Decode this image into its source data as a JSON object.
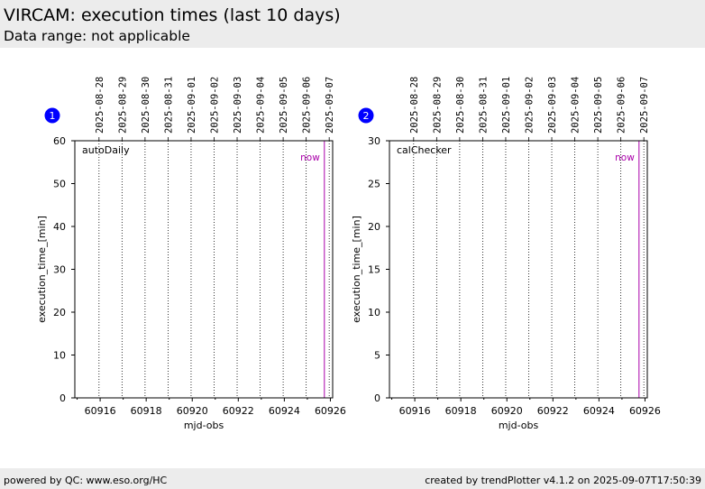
{
  "header": {
    "title": "VIRCAM: execution times (last 10 days)",
    "subtitle": "Data range: not applicable"
  },
  "footer": {
    "left": "powered by QC: www.eso.org/HC",
    "right": "created by trendPlotter v4.1.2 on 2025-09-07T17:50:39"
  },
  "colors": {
    "now_line": "#aa00aa",
    "marker": "#0000ff",
    "grid": "#000000"
  },
  "chart_data": [
    {
      "type": "scatter",
      "badge": "1",
      "panel_label": "autoDaily",
      "now_label": "now",
      "xlabel": "mjd-obs",
      "ylabel": "execution_time_[min]",
      "xlim": [
        60914.9,
        60926.1
      ],
      "ylim": [
        0,
        60
      ],
      "x_ticks": [
        60916,
        60918,
        60920,
        60922,
        60924,
        60926
      ],
      "y_ticks": [
        0,
        10,
        20,
        30,
        40,
        50,
        60
      ],
      "date_ticks": [
        {
          "mjd": 60915.95,
          "label": "2025-08-28"
        },
        {
          "mjd": 60916.95,
          "label": "2025-08-29"
        },
        {
          "mjd": 60917.95,
          "label": "2025-08-30"
        },
        {
          "mjd": 60918.95,
          "label": "2025-08-31"
        },
        {
          "mjd": 60919.95,
          "label": "2025-09-01"
        },
        {
          "mjd": 60920.95,
          "label": "2025-09-02"
        },
        {
          "mjd": 60921.95,
          "label": "2025-09-03"
        },
        {
          "mjd": 60922.95,
          "label": "2025-09-04"
        },
        {
          "mjd": 60923.95,
          "label": "2025-09-05"
        },
        {
          "mjd": 60924.95,
          "label": "2025-09-06"
        },
        {
          "mjd": 60925.95,
          "label": "2025-09-07"
        }
      ],
      "now_mjd": 60925.74,
      "series": []
    },
    {
      "type": "scatter",
      "badge": "2",
      "panel_label": "calChecker",
      "now_label": "now",
      "xlabel": "mjd-obs",
      "ylabel": "execution_time_[min]",
      "xlim": [
        60914.9,
        60926.1
      ],
      "ylim": [
        0,
        30
      ],
      "x_ticks": [
        60916,
        60918,
        60920,
        60922,
        60924,
        60926
      ],
      "y_ticks": [
        0,
        5,
        10,
        15,
        20,
        25,
        30
      ],
      "date_ticks": [
        {
          "mjd": 60915.95,
          "label": "2025-08-28"
        },
        {
          "mjd": 60916.95,
          "label": "2025-08-29"
        },
        {
          "mjd": 60917.95,
          "label": "2025-08-30"
        },
        {
          "mjd": 60918.95,
          "label": "2025-08-31"
        },
        {
          "mjd": 60919.95,
          "label": "2025-09-01"
        },
        {
          "mjd": 60920.95,
          "label": "2025-09-02"
        },
        {
          "mjd": 60921.95,
          "label": "2025-09-03"
        },
        {
          "mjd": 60922.95,
          "label": "2025-09-04"
        },
        {
          "mjd": 60923.95,
          "label": "2025-09-05"
        },
        {
          "mjd": 60924.95,
          "label": "2025-09-06"
        },
        {
          "mjd": 60925.95,
          "label": "2025-09-07"
        }
      ],
      "now_mjd": 60925.74,
      "series": []
    }
  ]
}
